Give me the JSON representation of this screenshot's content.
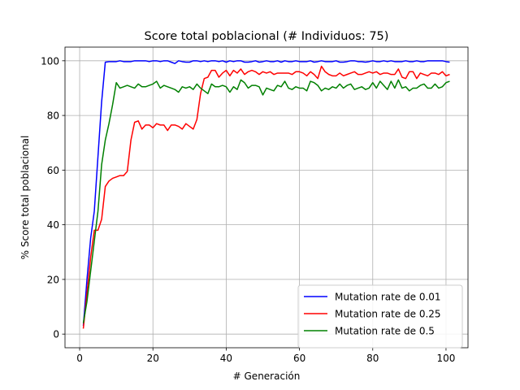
{
  "chart_data": {
    "type": "line",
    "title": "Score total poblacional (# Individuos: 75)",
    "xlabel": "# Generación",
    "ylabel": "% Score total poblacional",
    "xlim": [
      -4,
      106
    ],
    "ylim": [
      -5,
      105
    ],
    "xticks": [
      0,
      20,
      40,
      60,
      80,
      100
    ],
    "yticks": [
      0,
      20,
      40,
      60,
      80,
      100
    ],
    "grid": true,
    "legend_position": "lower-right",
    "x": [
      1,
      2,
      3,
      4,
      5,
      6,
      7,
      8,
      9,
      10,
      11,
      12,
      13,
      14,
      15,
      16,
      17,
      18,
      19,
      20,
      21,
      22,
      23,
      24,
      25,
      26,
      27,
      28,
      29,
      30,
      31,
      32,
      33,
      34,
      35,
      36,
      37,
      38,
      39,
      40,
      41,
      42,
      43,
      44,
      45,
      46,
      47,
      48,
      49,
      50,
      51,
      52,
      53,
      54,
      55,
      56,
      57,
      58,
      59,
      60,
      61,
      62,
      63,
      64,
      65,
      66,
      67,
      68,
      69,
      70,
      71,
      72,
      73,
      74,
      75,
      76,
      77,
      78,
      79,
      80,
      81,
      82,
      83,
      84,
      85,
      86,
      87,
      88,
      89,
      90,
      91,
      92,
      93,
      94,
      95,
      96,
      97,
      98,
      99,
      100,
      101
    ],
    "series": [
      {
        "name": "Mutation rate de 0.01",
        "color": "#0000ff",
        "values": [
          3,
          20,
          35,
          45,
          65,
          85,
          99.5,
          99.7,
          99.7,
          99.7,
          100,
          99.7,
          99.7,
          99.7,
          100,
          100,
          100,
          100,
          99.7,
          100,
          100,
          99.7,
          100,
          100,
          99.5,
          99,
          100,
          99.7,
          99.5,
          99.5,
          100,
          100,
          99.7,
          100,
          99.7,
          100,
          100,
          99.7,
          100,
          99.5,
          100,
          99.7,
          100,
          100,
          99.5,
          99.5,
          99.7,
          100,
          99.5,
          99.7,
          100,
          99.7,
          99.7,
          100,
          99.5,
          100,
          99.7,
          99.7,
          100,
          99.7,
          99.7,
          99.7,
          100,
          99.5,
          99.7,
          100,
          99.7,
          99.7,
          99.7,
          100,
          99.5,
          99.5,
          99.7,
          100,
          100,
          99.7,
          99.7,
          99.5,
          99.7,
          100,
          99.7,
          99.7,
          100,
          99.7,
          100,
          99.7,
          99.7,
          99.7,
          100,
          99.7,
          99.7,
          100,
          99.7,
          99.7,
          100,
          100,
          100,
          100,
          100,
          99.7,
          99.5
        ]
      },
      {
        "name": "Mutation rate de 0.25",
        "color": "#ff0000",
        "values": [
          2,
          15,
          28,
          38,
          38,
          42,
          54,
          56,
          57,
          57.5,
          58,
          58,
          59.5,
          71,
          77.5,
          78,
          75,
          76.5,
          76.5,
          75.5,
          77,
          76.5,
          76.5,
          74.5,
          76.5,
          76.5,
          76,
          75,
          77,
          76,
          75,
          78.5,
          88,
          93.5,
          94,
          96.5,
          96.5,
          94,
          95.5,
          96.5,
          94.5,
          96.5,
          95.5,
          97,
          95,
          96,
          96.5,
          96,
          95,
          96,
          95.5,
          96,
          95,
          95.5,
          95.5,
          95.5,
          95.5,
          95,
          96,
          96,
          95.5,
          94.5,
          96,
          95,
          93.5,
          98,
          96,
          95,
          94.5,
          94.5,
          95.5,
          94.5,
          95,
          95.5,
          96,
          95,
          95,
          95.5,
          96,
          95.5,
          96,
          95,
          95.5,
          95.5,
          95,
          95,
          97,
          94,
          93.5,
          96,
          96,
          93.5,
          95.5,
          95,
          94.5,
          95.5,
          95.5,
          95,
          96,
          94.5,
          95
        ]
      },
      {
        "name": "Mutation rate de 0.5",
        "color": "#008000",
        "values": [
          4,
          12,
          23,
          34,
          45,
          62,
          71,
          77,
          84,
          92,
          90,
          90.5,
          91,
          90.5,
          90,
          91.5,
          90.5,
          90.5,
          91,
          91.5,
          92.5,
          90,
          91,
          90.5,
          90,
          89.5,
          88.5,
          90.5,
          90,
          90.5,
          89.5,
          91.5,
          90,
          89,
          88,
          91.5,
          90.5,
          90.5,
          91,
          90.5,
          88.5,
          90.5,
          89.5,
          93,
          92,
          90,
          91,
          91,
          90.5,
          87.5,
          90,
          89.5,
          89,
          91,
          90.5,
          92.5,
          90,
          89.5,
          90.5,
          90,
          90,
          89,
          92.5,
          92,
          91,
          89,
          90,
          89.5,
          90.5,
          90,
          91.5,
          90,
          91,
          91.5,
          89.5,
          90,
          90.5,
          89.5,
          90,
          92,
          90,
          92.5,
          91,
          89.5,
          92.5,
          90,
          93,
          90,
          90.5,
          89,
          90,
          90,
          91,
          91.5,
          90,
          90,
          91.5,
          90,
          90.5,
          92,
          92.5
        ]
      }
    ]
  }
}
